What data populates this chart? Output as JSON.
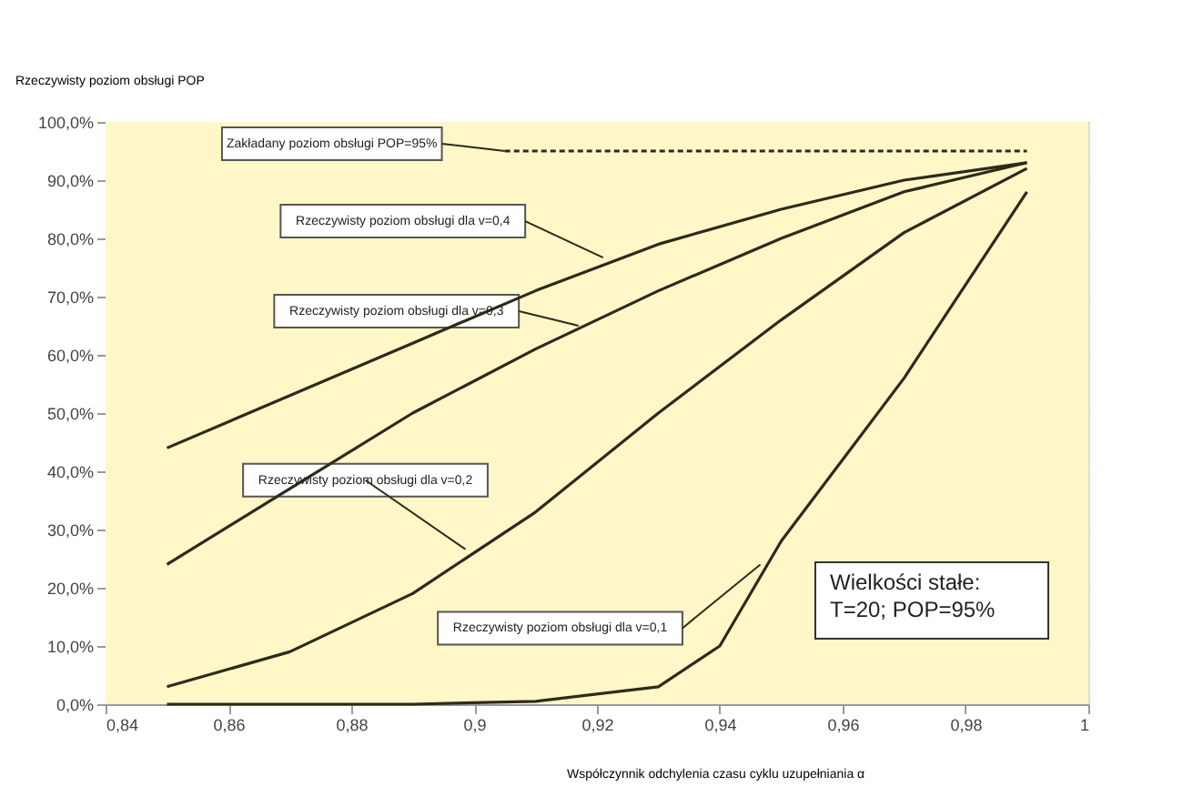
{
  "chart_data": {
    "type": "line",
    "xlabel": "Współczynnik odchylenia czasu cyklu uzupełniania α",
    "ylabel": "Rzeczywisty poziom obsługi POP",
    "series": [
      {
        "color": "#2e2a1a",
        "x": [
          0.85,
          0.87,
          0.89,
          0.91,
          0.93,
          0.95,
          0.97,
          0.99
        ],
        "values": [
          44,
          53,
          62,
          71,
          79,
          85,
          90,
          93
        ]
      },
      {
        "color": "#2e2a1a",
        "x": [
          0.85,
          0.87,
          0.89,
          0.91,
          0.93,
          0.95,
          0.97,
          0.99
        ],
        "values": [
          24,
          37,
          50,
          61,
          71,
          80,
          88,
          93
        ]
      },
      {
        "color": "#2e2a1a",
        "x": [
          0.85,
          0.87,
          0.89,
          0.91,
          0.93,
          0.95,
          0.97,
          0.99
        ],
        "values": [
          3,
          9,
          19,
          33,
          50,
          66,
          81,
          92
        ]
      },
      {
        "color": "#2e2a1a",
        "x": [
          0.85,
          0.87,
          0.89,
          0.91,
          0.93,
          0.94,
          0.95,
          0.96,
          0.97,
          0.98,
          0.99
        ],
        "values": [
          0,
          0,
          0,
          0.5,
          3,
          10,
          28,
          42,
          56,
          72,
          88
        ]
      },
      {
        "color": "#2e2a1a",
        "x": [
          0.905,
          0.99
        ],
        "values": [
          95,
          95
        ],
        "line_style": "dashed"
      }
    ],
    "annotations": [
      {
        "text": "Zakładany poziom obsługi POP=95%",
        "x": 0.905,
        "y": 95
      },
      {
        "text": "Rzeczywisty poziom obsługi dla v=0,4",
        "x": 0.921,
        "y": 76.7
      },
      {
        "text": "Rzeczywisty poziom obsługi dla v=0,3",
        "x": 0.917,
        "y": 65
      },
      {
        "text": "Rzeczywisty poziom obsługi dla v=0,2",
        "x": 0.8986,
        "y": 26.6
      },
      {
        "text": "Rzeczywisty poziom obsługi dla v=0,1",
        "x": 0.9466,
        "y": 24
      },
      "Wielkości stałe:\nT=20; POP=95%"
    ],
    "xlim": [
      0.84,
      1
    ],
    "xticks": [
      {
        "value": 0.84,
        "label": "0,84"
      },
      {
        "value": 0.86,
        "label": "0,86"
      },
      {
        "value": 0.88,
        "label": "0,88"
      },
      {
        "value": 0.9,
        "label": "0,9"
      },
      {
        "value": 0.92,
        "label": "0,92"
      },
      {
        "value": 0.94,
        "label": "0,94"
      },
      {
        "value": 0.96,
        "label": "0,96"
      },
      {
        "value": 0.98,
        "label": "0,98"
      },
      {
        "value": 1,
        "label": "1"
      }
    ],
    "ylim": [
      0,
      100
    ],
    "yticks": [
      {
        "value": 0,
        "label": "0,0%"
      },
      {
        "value": 10,
        "label": "10,0%"
      },
      {
        "value": 20,
        "label": "20,0%"
      },
      {
        "value": 30,
        "label": "30,0%"
      },
      {
        "value": 40,
        "label": "40,0%"
      },
      {
        "value": 50,
        "label": "50,0%"
      },
      {
        "value": 60,
        "label": "60,0%"
      },
      {
        "value": 70,
        "label": "70,0%"
      },
      {
        "value": 80,
        "label": "80,0%"
      },
      {
        "value": 90,
        "label": "90,0%"
      },
      {
        "value": 100,
        "label": "100,0%"
      }
    ],
    "grid": "y",
    "marker": "none",
    "line_style": "solid"
  }
}
